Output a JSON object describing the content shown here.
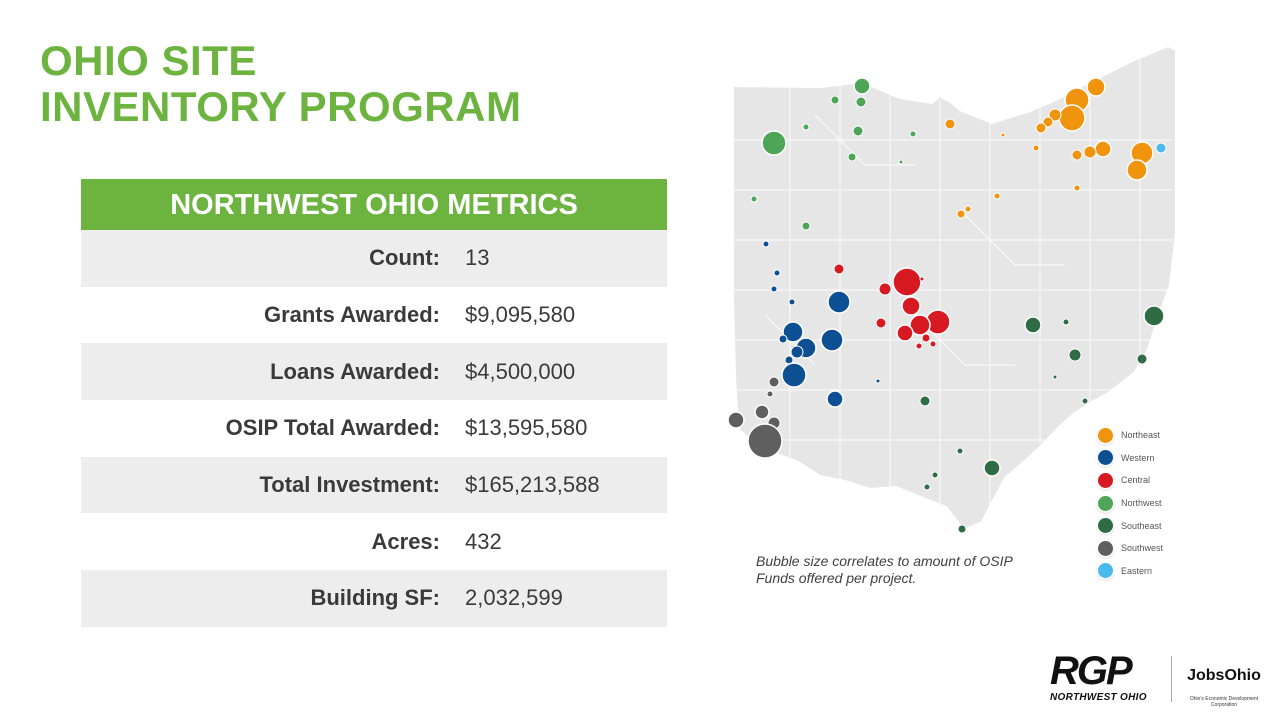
{
  "title": {
    "line1": "OHIO SITE",
    "line2": "INVENTORY PROGRAM"
  },
  "metrics": {
    "header": "NORTHWEST OHIO METRICS",
    "rows": [
      {
        "label": "Count:",
        "value": "13"
      },
      {
        "label": "Grants Awarded:",
        "value": "$9,095,580"
      },
      {
        "label": "Loans Awarded:",
        "value": "$4,500,000"
      },
      {
        "label": "OSIP Total Awarded:",
        "value": "$13,595,580"
      },
      {
        "label": "Total Investment:",
        "value": "$165,213,588"
      },
      {
        "label": "Acres:",
        "value": "432"
      },
      {
        "label": "Building SF:",
        "value": "2,032,599"
      }
    ]
  },
  "map": {
    "caption": "Bubble size correlates to amount of OSIP Funds offered per project.",
    "land_color": "#e6e6e6",
    "border_color": "#ffffff",
    "legend": [
      {
        "label": "Northeast",
        "color": "#f0940d"
      },
      {
        "label": "Western",
        "color": "#0d4f93"
      },
      {
        "label": "Central",
        "color": "#d71921"
      },
      {
        "label": "Northwest",
        "color": "#4fa557"
      },
      {
        "label": "Southeast",
        "color": "#2f6b45"
      },
      {
        "label": "Southwest",
        "color": "#5f5f5f"
      },
      {
        "label": "Eastern",
        "color": "#4bb9ec"
      }
    ]
  },
  "logos": {
    "rgp": {
      "mark": "RGP",
      "subtitle": "NORTHWEST OHIO"
    },
    "jobsohio": {
      "mark": "JobsOhio",
      "subtitle": "Ohio's Economic Development Corporation"
    }
  }
}
